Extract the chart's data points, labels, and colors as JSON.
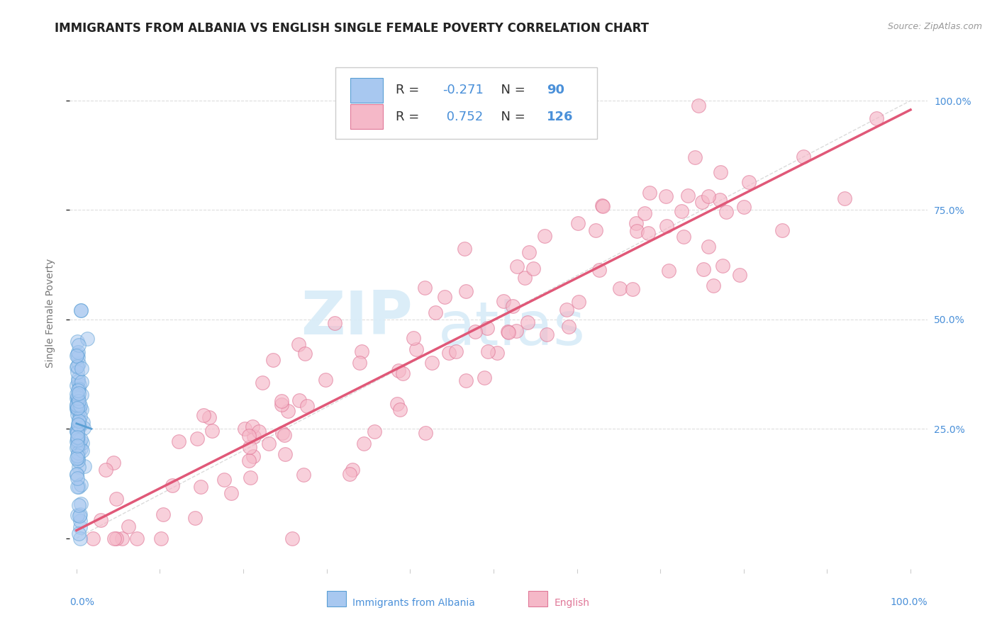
{
  "title": "IMMIGRANTS FROM ALBANIA VS ENGLISH SINGLE FEMALE POVERTY CORRELATION CHART",
  "source": "Source: ZipAtlas.com",
  "ylabel": "Single Female Poverty",
  "legend_albania": "Immigrants from Albania",
  "legend_english": "English",
  "r_albania": -0.271,
  "n_albania": 90,
  "r_english": 0.752,
  "n_english": 126,
  "color_albania_fill": "#a8c8f0",
  "color_albania_edge": "#5a9fd4",
  "color_english_fill": "#f5b8c8",
  "color_english_edge": "#e07898",
  "color_regression_english": "#e05878",
  "color_regression_albania": "#5a9fd4",
  "color_diagonal": "#cccccc",
  "color_grid": "#dddddd",
  "color_ytick": "#4a90d9",
  "color_ylabel": "#777777",
  "color_title": "#222222",
  "color_source": "#999999",
  "color_legend_r": "#333333",
  "color_legend_n": "#4a90d9",
  "background_color": "#ffffff",
  "watermark_color": "#d8ecf8",
  "title_fontsize": 12,
  "source_fontsize": 9,
  "tick_fontsize": 10,
  "legend_fontsize": 13,
  "ylabel_fontsize": 10,
  "watermark_fontsize_zip": 62,
  "watermark_fontsize_atlas": 62
}
